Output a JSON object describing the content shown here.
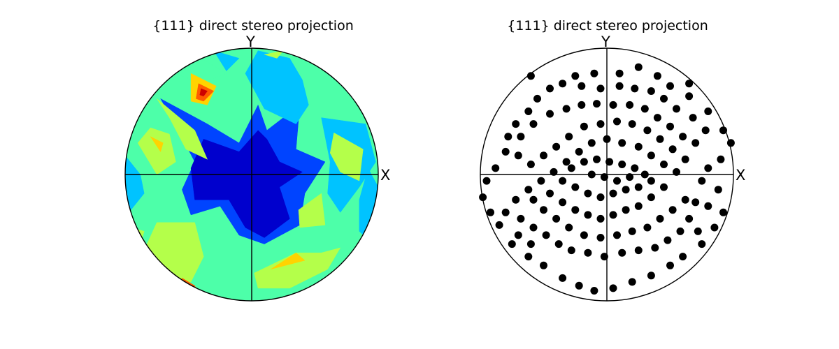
{
  "chart_data": [
    {
      "type": "contour",
      "title": "{111} direct stereo projection",
      "xlabel": "X",
      "ylabel": "Y",
      "xlim": [
        -1,
        1
      ],
      "ylim": [
        -1,
        1
      ],
      "colormap": "jet",
      "levels": [
        {
          "level": 0,
          "color": "#0000cd"
        },
        {
          "level": 1,
          "color": "#0044ff"
        },
        {
          "level": 2,
          "color": "#00c3ff"
        },
        {
          "level": 3,
          "color": "#4dffa9"
        },
        {
          "level": 4,
          "color": "#b4ff4a"
        },
        {
          "level": 5,
          "color": "#ffd300"
        },
        {
          "level": 6,
          "color": "#ff5b00"
        },
        {
          "level": 7,
          "color": "#cd0000"
        }
      ],
      "regions": [
        {
          "level": 1,
          "polygon": [
            [
              -0.72,
              0.6
            ],
            [
              -0.35,
              0.4
            ],
            [
              -0.1,
              0.25
            ],
            [
              0.05,
              0.55
            ],
            [
              0.12,
              0.35
            ],
            [
              0.38,
              0.55
            ],
            [
              0.35,
              0.2
            ],
            [
              0.58,
              0.1
            ],
            [
              0.42,
              -0.15
            ],
            [
              0.38,
              -0.4
            ],
            [
              0.1,
              -0.55
            ],
            [
              -0.1,
              -0.48
            ],
            [
              -0.25,
              -0.25
            ],
            [
              -0.48,
              -0.32
            ],
            [
              -0.55,
              -0.12
            ],
            [
              -0.45,
              0.1
            ],
            [
              -0.58,
              0.35
            ]
          ]
        },
        {
          "level": 0,
          "polygon": [
            [
              -0.38,
              0.28
            ],
            [
              -0.1,
              0.18
            ],
            [
              0.05,
              0.35
            ],
            [
              0.12,
              0.28
            ],
            [
              0.22,
              0.1
            ],
            [
              0.4,
              0.02
            ],
            [
              0.22,
              -0.1
            ],
            [
              0.3,
              -0.35
            ],
            [
              0.1,
              -0.5
            ],
            [
              -0.05,
              -0.42
            ],
            [
              -0.18,
              -0.2
            ],
            [
              -0.45,
              -0.2
            ],
            [
              -0.48,
              0.05
            ]
          ]
        },
        {
          "level": 2,
          "polygon": [
            [
              0.05,
              0.98
            ],
            [
              0.3,
              0.92
            ],
            [
              0.4,
              0.75
            ],
            [
              0.45,
              0.55
            ],
            [
              0.35,
              0.4
            ],
            [
              0.1,
              0.52
            ],
            [
              -0.05,
              0.8
            ]
          ]
        },
        {
          "level": 2,
          "polygon": [
            [
              -0.3,
              0.98
            ],
            [
              -0.1,
              0.92
            ],
            [
              -0.2,
              0.82
            ]
          ]
        },
        {
          "level": 2,
          "polygon": [
            [
              0.55,
              0.45
            ],
            [
              0.9,
              0.4
            ],
            [
              0.98,
              0.1
            ],
            [
              0.85,
              -0.1
            ],
            [
              0.7,
              -0.3
            ],
            [
              0.6,
              -0.15
            ],
            [
              0.62,
              0.1
            ]
          ]
        },
        {
          "level": 2,
          "polygon": [
            [
              0.92,
              0.05
            ],
            [
              1.0,
              -0.1
            ],
            [
              0.96,
              -0.55
            ],
            [
              0.85,
              -0.45
            ],
            [
              0.85,
              -0.2
            ]
          ]
        },
        {
          "level": 2,
          "polygon": [
            [
              -1.0,
              0.15
            ],
            [
              -0.88,
              0.0
            ],
            [
              -0.85,
              -0.15
            ],
            [
              -0.97,
              -0.3
            ],
            [
              -1.0,
              -0.2
            ]
          ]
        },
        {
          "level": 3,
          "polygon": [
            [
              -0.5,
              0.98
            ],
            [
              -0.2,
              0.8
            ],
            [
              -0.4,
              0.72
            ],
            [
              -0.6,
              0.8
            ],
            [
              -0.55,
              0.92
            ]
          ]
        },
        {
          "level": 4,
          "polygon": [
            [
              -0.65,
              0.45
            ],
            [
              -0.52,
              0.2
            ],
            [
              -0.35,
              0.12
            ],
            [
              -0.45,
              0.35
            ],
            [
              -0.75,
              0.6
            ]
          ]
        },
        {
          "level": 4,
          "polygon": [
            [
              -0.9,
              0.25
            ],
            [
              -0.8,
              0.37
            ],
            [
              -0.65,
              0.32
            ],
            [
              -0.6,
              0.1
            ],
            [
              -0.75,
              0.0
            ]
          ]
        },
        {
          "level": 4,
          "polygon": [
            [
              0.1,
              0.95
            ],
            [
              0.25,
              0.98
            ],
            [
              0.2,
              0.92
            ]
          ]
        },
        {
          "level": 4,
          "polygon": [
            [
              0.65,
              0.33
            ],
            [
              0.88,
              0.2
            ],
            [
              0.85,
              -0.05
            ],
            [
              0.7,
              0.02
            ],
            [
              0.62,
              0.17
            ]
          ]
        },
        {
          "level": 4,
          "polygon": [
            [
              0.37,
              -0.28
            ],
            [
              0.55,
              -0.15
            ],
            [
              0.58,
              -0.4
            ],
            [
              0.38,
              -0.42
            ]
          ]
        },
        {
          "level": 4,
          "polygon": [
            [
              0.02,
              -0.78
            ],
            [
              0.35,
              -0.62
            ],
            [
              0.55,
              -0.62
            ],
            [
              0.7,
              -0.58
            ],
            [
              0.6,
              -0.75
            ],
            [
              0.3,
              -0.9
            ],
            [
              0.05,
              -0.9
            ]
          ]
        },
        {
          "level": 4,
          "polygon": [
            [
              -0.75,
              -0.38
            ],
            [
              -0.45,
              -0.38
            ],
            [
              -0.38,
              -0.65
            ],
            [
              -0.48,
              -0.85
            ],
            [
              -0.7,
              -0.88
            ],
            [
              -0.85,
              -0.6
            ]
          ]
        },
        {
          "level": 4,
          "polygon": [
            [
              -0.95,
              -0.42
            ],
            [
              -0.85,
              -0.45
            ],
            [
              -0.88,
              -0.55
            ]
          ]
        },
        {
          "level": 5,
          "polygon": [
            [
              -0.48,
              0.8
            ],
            [
              -0.28,
              0.7
            ],
            [
              -0.35,
              0.55
            ],
            [
              -0.48,
              0.58
            ]
          ]
        },
        {
          "level": 5,
          "polygon": [
            [
              -0.8,
              0.3
            ],
            [
              -0.7,
              0.25
            ],
            [
              -0.72,
              0.18
            ]
          ]
        },
        {
          "level": 5,
          "polygon": [
            [
              0.15,
              -0.75
            ],
            [
              0.42,
              -0.68
            ],
            [
              0.35,
              -0.62
            ]
          ]
        },
        {
          "level": 5,
          "polygon": [
            [
              -0.55,
              -0.82
            ],
            [
              -0.4,
              -0.92
            ],
            [
              -0.48,
              -0.98
            ],
            [
              -0.6,
              -0.88
            ]
          ]
        },
        {
          "level": 6,
          "polygon": [
            [
              -0.42,
              0.72
            ],
            [
              -0.3,
              0.66
            ],
            [
              -0.38,
              0.58
            ],
            [
              -0.44,
              0.6
            ]
          ]
        },
        {
          "level": 6,
          "polygon": [
            [
              -0.55,
              -0.82
            ],
            [
              -0.45,
              -0.88
            ],
            [
              -0.42,
              -0.96
            ],
            [
              -0.5,
              -0.98
            ]
          ]
        },
        {
          "level": 7,
          "polygon": [
            [
              -0.4,
              0.68
            ],
            [
              -0.35,
              0.66
            ],
            [
              -0.38,
              0.62
            ],
            [
              -0.41,
              0.63
            ]
          ]
        }
      ]
    },
    {
      "type": "scatter",
      "title": "{111} direct stereo projection",
      "xlabel": "X",
      "ylabel": "Y",
      "xlim": [
        -1,
        1
      ],
      "ylim": [
        -1,
        1
      ],
      "marker_color": "#000000",
      "points": [
        [
          -0.6,
          0.78
        ],
        [
          -0.25,
          0.78
        ],
        [
          -0.1,
          0.8
        ],
        [
          0.1,
          0.8
        ],
        [
          0.25,
          0.85
        ],
        [
          0.4,
          0.78
        ],
        [
          0.5,
          0.7
        ],
        [
          0.65,
          0.62
        ],
        [
          0.8,
          0.5
        ],
        [
          0.92,
          0.35
        ],
        [
          0.98,
          0.25
        ],
        [
          0.9,
          0.12
        ],
        [
          0.8,
          0.05
        ],
        [
          0.75,
          -0.05
        ],
        [
          0.88,
          -0.12
        ],
        [
          0.92,
          -0.3
        ],
        [
          0.85,
          -0.42
        ],
        [
          0.75,
          -0.55
        ],
        [
          0.6,
          -0.65
        ],
        [
          0.5,
          -0.72
        ],
        [
          0.35,
          -0.8
        ],
        [
          0.2,
          -0.85
        ],
        [
          0.05,
          -0.9
        ],
        [
          -0.1,
          -0.92
        ],
        [
          -0.22,
          -0.88
        ],
        [
          -0.35,
          -0.82
        ],
        [
          -0.5,
          -0.72
        ],
        [
          -0.62,
          -0.65
        ],
        [
          -0.75,
          -0.55
        ],
        [
          -0.85,
          -0.4
        ],
        [
          -0.92,
          -0.3
        ],
        [
          -0.98,
          -0.18
        ],
        [
          -0.95,
          -0.05
        ],
        [
          -0.88,
          0.05
        ],
        [
          -0.8,
          0.18
        ],
        [
          -0.78,
          0.3
        ],
        [
          -0.72,
          0.4
        ],
        [
          -0.62,
          0.5
        ],
        [
          -0.55,
          0.6
        ],
        [
          -0.45,
          0.68
        ],
        [
          -0.35,
          0.72
        ],
        [
          -0.2,
          0.7
        ],
        [
          -0.05,
          0.68
        ],
        [
          0.1,
          0.7
        ],
        [
          0.22,
          0.68
        ],
        [
          0.35,
          0.66
        ],
        [
          0.45,
          0.6
        ],
        [
          0.55,
          0.52
        ],
        [
          0.68,
          0.45
        ],
        [
          0.78,
          0.35
        ],
        [
          0.7,
          0.25
        ],
        [
          0.6,
          0.3
        ],
        [
          0.5,
          0.38
        ],
        [
          0.4,
          0.45
        ],
        [
          0.3,
          0.52
        ],
        [
          0.18,
          0.55
        ],
        [
          0.05,
          0.55
        ],
        [
          -0.08,
          0.56
        ],
        [
          -0.2,
          0.55
        ],
        [
          -0.32,
          0.52
        ],
        [
          -0.45,
          0.48
        ],
        [
          -0.58,
          0.4
        ],
        [
          -0.68,
          0.3
        ],
        [
          -0.7,
          0.15
        ],
        [
          -0.6,
          0.08
        ],
        [
          -0.5,
          0.15
        ],
        [
          -0.4,
          0.22
        ],
        [
          -0.3,
          0.3
        ],
        [
          -0.18,
          0.38
        ],
        [
          -0.05,
          0.4
        ],
        [
          0.08,
          0.42
        ],
        [
          0.2,
          0.4
        ],
        [
          0.32,
          0.35
        ],
        [
          0.42,
          0.28
        ],
        [
          0.52,
          0.2
        ],
        [
          0.62,
          0.12
        ],
        [
          0.55,
          0.02
        ],
        [
          0.45,
          0.08
        ],
        [
          0.35,
          0.15
        ],
        [
          0.25,
          0.22
        ],
        [
          0.12,
          0.25
        ],
        [
          0.0,
          0.28
        ],
        [
          -0.12,
          0.25
        ],
        [
          -0.22,
          0.18
        ],
        [
          -0.32,
          0.1
        ],
        [
          -0.42,
          0.02
        ],
        [
          -0.52,
          -0.05
        ],
        [
          -0.62,
          -0.12
        ],
        [
          -0.72,
          -0.2
        ],
        [
          -0.68,
          -0.35
        ],
        [
          -0.58,
          -0.42
        ],
        [
          -0.48,
          -0.48
        ],
        [
          -0.38,
          -0.55
        ],
        [
          -0.28,
          -0.6
        ],
        [
          -0.15,
          -0.62
        ],
        [
          -0.02,
          -0.65
        ],
        [
          0.12,
          -0.62
        ],
        [
          0.25,
          -0.6
        ],
        [
          0.38,
          -0.58
        ],
        [
          0.48,
          -0.52
        ],
        [
          0.58,
          -0.45
        ],
        [
          0.65,
          -0.35
        ],
        [
          0.7,
          -0.22
        ],
        [
          0.62,
          -0.2
        ],
        [
          0.52,
          -0.28
        ],
        [
          0.42,
          -0.35
        ],
        [
          0.32,
          -0.42
        ],
        [
          0.2,
          -0.45
        ],
        [
          0.08,
          -0.48
        ],
        [
          -0.05,
          -0.5
        ],
        [
          -0.18,
          -0.48
        ],
        [
          -0.3,
          -0.42
        ],
        [
          -0.4,
          -0.35
        ],
        [
          -0.5,
          -0.28
        ],
        [
          -0.58,
          -0.2
        ],
        [
          -0.45,
          -0.15
        ],
        [
          -0.35,
          -0.22
        ],
        [
          -0.25,
          -0.28
        ],
        [
          -0.15,
          -0.32
        ],
        [
          -0.05,
          -0.35
        ],
        [
          0.05,
          -0.32
        ],
        [
          0.15,
          -0.28
        ],
        [
          0.25,
          -0.25
        ],
        [
          0.35,
          -0.18
        ],
        [
          0.45,
          -0.1
        ],
        [
          0.35,
          -0.05
        ],
        [
          0.25,
          -0.1
        ],
        [
          0.15,
          -0.12
        ],
        [
          0.05,
          -0.15
        ],
        [
          -0.05,
          -0.18
        ],
        [
          -0.15,
          -0.15
        ],
        [
          -0.25,
          -0.1
        ],
        [
          -0.35,
          -0.05
        ],
        [
          -0.28,
          0.05
        ],
        [
          -0.18,
          0.1
        ],
        [
          -0.08,
          0.12
        ],
        [
          0.02,
          0.1
        ],
        [
          0.12,
          0.08
        ],
        [
          0.22,
          0.05
        ],
        [
          0.3,
          0.0
        ],
        [
          0.18,
          -0.02
        ],
        [
          0.08,
          -0.05
        ],
        [
          -0.02,
          -0.02
        ],
        [
          -0.12,
          0.0
        ],
        [
          -0.6,
          -0.55
        ],
        [
          -0.7,
          -0.48
        ],
        [
          -0.8,
          -0.3
        ],
        [
          0.8,
          -0.25
        ],
        [
          0.72,
          -0.45
        ],
        [
          0.65,
          0.72
        ]
      ]
    }
  ]
}
